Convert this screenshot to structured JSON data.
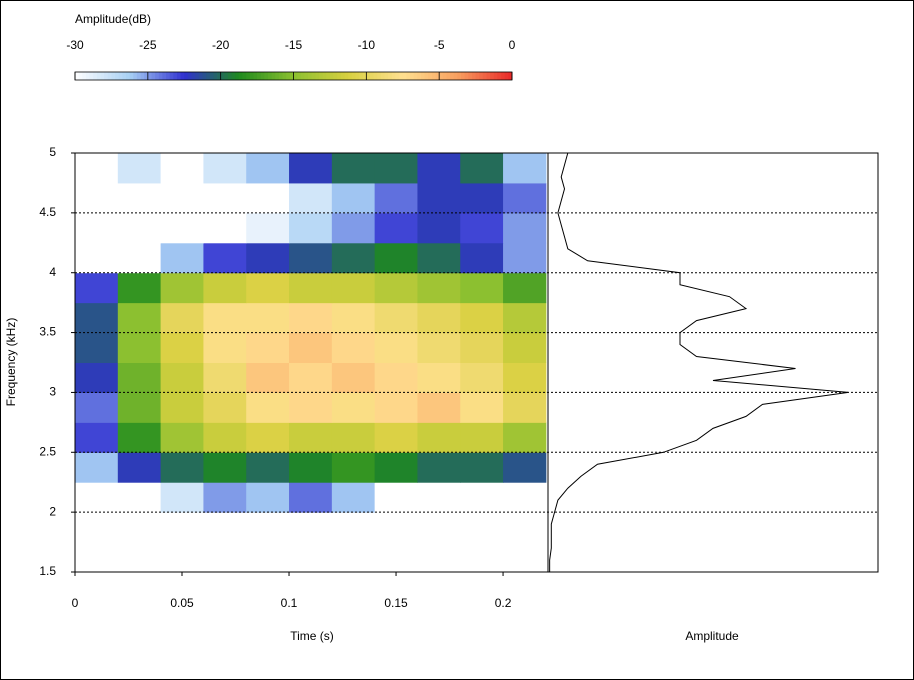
{
  "chart_data": [
    {
      "type": "heatmap",
      "colorbar_label": "Amplitude(dB)",
      "xlabel": "Time (s)",
      "ylabel": "Frequency (kHz)",
      "x": [
        0.01,
        0.03,
        0.05,
        0.07,
        0.09,
        0.11,
        0.13,
        0.15,
        0.17,
        0.19,
        0.21
      ],
      "y": [
        1.625,
        1.875,
        2.125,
        2.375,
        2.625,
        2.875,
        3.125,
        3.375,
        3.625,
        3.875,
        4.125,
        4.375,
        4.625,
        4.875
      ],
      "z": [
        [
          -30,
          -30,
          -30,
          -30,
          -30,
          -30,
          -30,
          -30,
          -30,
          -30,
          -30
        ],
        [
          -30,
          -30,
          -30,
          -30,
          -30,
          -30,
          -30,
          -30,
          -30,
          -30,
          -30
        ],
        [
          -30,
          -30,
          -28,
          -25,
          -26,
          -24,
          -26,
          -30,
          -30,
          -30,
          -30
        ],
        [
          -26,
          -22,
          -20,
          -19,
          -20,
          -19,
          -18,
          -19,
          -20,
          -20,
          -21
        ],
        [
          -23,
          -18,
          -14,
          -12,
          -11,
          -12,
          -12,
          -11,
          -12,
          -12,
          -14
        ],
        [
          -24,
          -16,
          -12,
          -10,
          -8,
          -7,
          -8,
          -7,
          -6,
          -8,
          -10
        ],
        [
          -22,
          -16,
          -12,
          -9,
          -6,
          -7,
          -6,
          -7,
          -8,
          -9,
          -11
        ],
        [
          -21,
          -15,
          -11,
          -8,
          -7,
          -6,
          -7,
          -8,
          -9,
          -10,
          -12
        ],
        [
          -21,
          -15,
          -10,
          -8,
          -8,
          -7,
          -8,
          -9,
          -10,
          -11,
          -13
        ],
        [
          -23,
          -18,
          -14,
          -12,
          -11,
          -12,
          -12,
          -13,
          -14,
          -15,
          -17
        ],
        [
          -30,
          -30,
          -26,
          -23,
          -22,
          -21,
          -20,
          -19,
          -20,
          -22,
          -25
        ],
        [
          -30,
          -30,
          -30,
          -30,
          -29,
          -27,
          -25,
          -23,
          -22,
          -23,
          -25
        ],
        [
          -30,
          -30,
          -30,
          -30,
          -30,
          -28,
          -26,
          -24,
          -22,
          -22,
          -24
        ],
        [
          -30,
          -28,
          -30,
          -28,
          -26,
          -22,
          -20,
          -20,
          -22,
          -20,
          -26
        ]
      ],
      "zlim": [
        -30,
        0
      ],
      "zticks": [
        -30,
        -25,
        -20,
        -15,
        -10,
        -5,
        0
      ],
      "colors": [
        "#ffffff",
        "#a8d0f4",
        "#3030d0",
        "#1e8a1e",
        "#8cc030",
        "#d8d040",
        "#ffe090",
        "#f8a060",
        "#e82828"
      ],
      "xlim": [
        0,
        0.221
      ],
      "xticks": [
        0,
        0.05,
        0.1,
        0.15,
        0.2
      ],
      "ylim": [
        1.5,
        5
      ],
      "yticks": [
        1.5,
        2,
        2.5,
        3,
        3.5,
        4,
        4.5,
        5
      ],
      "grid": true
    },
    {
      "type": "line",
      "xlabel": "Amplitude",
      "color": "#000000",
      "y": [
        1.5,
        1.6,
        1.7,
        1.8,
        1.9,
        2.0,
        2.1,
        2.2,
        2.3,
        2.4,
        2.5,
        2.6,
        2.7,
        2.8,
        2.9,
        3.0,
        3.1,
        3.2,
        3.3,
        3.4,
        3.5,
        3.6,
        3.7,
        3.8,
        3.9,
        4.0,
        4.1,
        4.2,
        4.3,
        4.4,
        4.5,
        4.6,
        4.7,
        4.8,
        4.9,
        5.0
      ],
      "values": [
        0.005,
        0.005,
        0.01,
        0.01,
        0.01,
        0.02,
        0.03,
        0.06,
        0.1,
        0.15,
        0.35,
        0.45,
        0.5,
        0.6,
        0.65,
        0.91,
        0.5,
        0.75,
        0.45,
        0.4,
        0.4,
        0.45,
        0.6,
        0.55,
        0.4,
        0.4,
        0.12,
        0.06,
        0.05,
        0.04,
        0.03,
        0.04,
        0.05,
        0.04,
        0.05,
        0.06
      ],
      "xlim": [
        0,
        1
      ],
      "ylim": [
        1.5,
        5
      ]
    }
  ]
}
